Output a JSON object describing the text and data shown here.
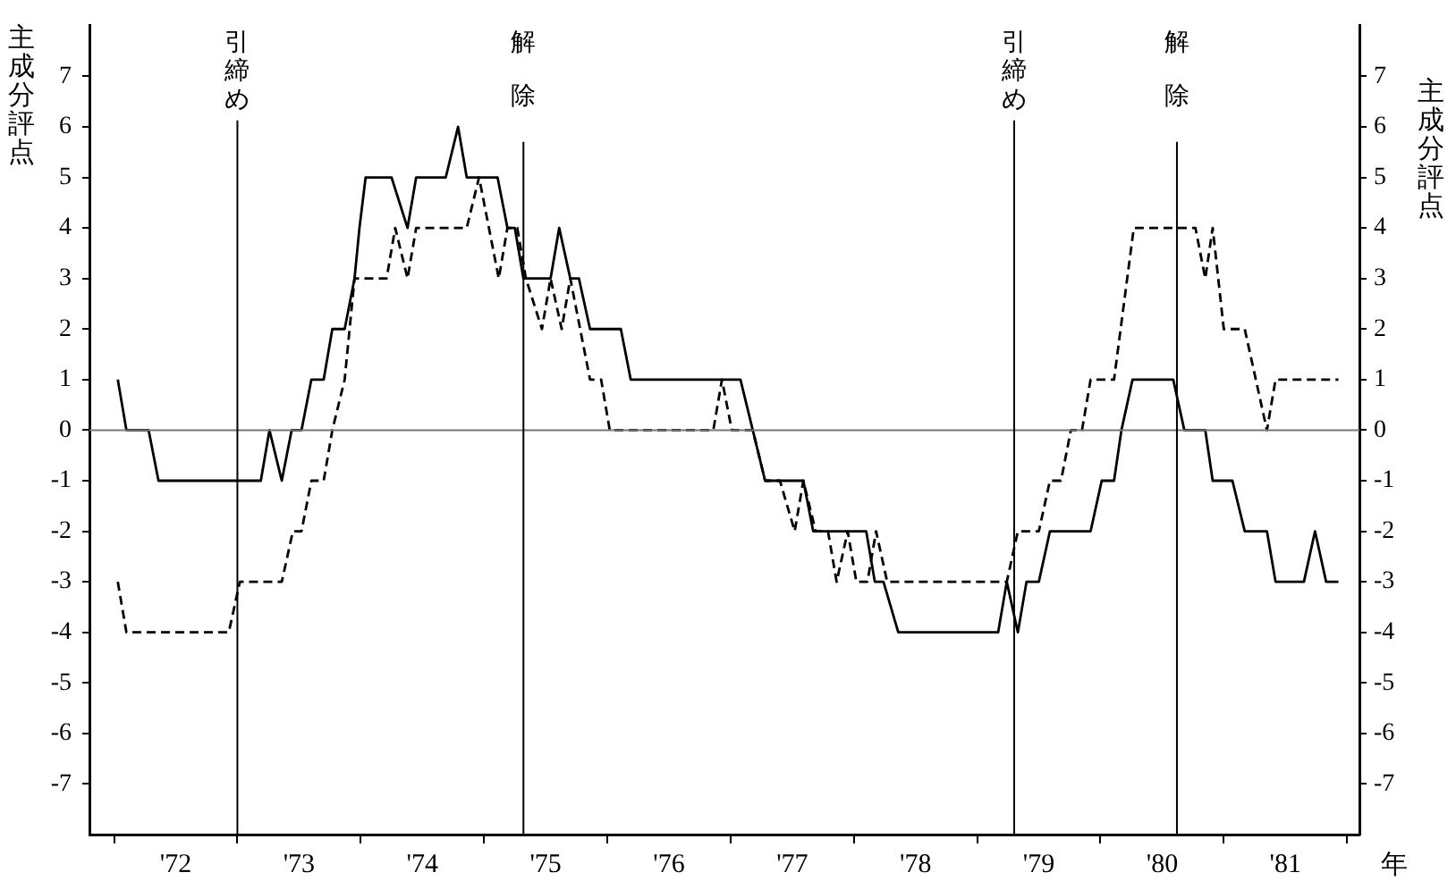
{
  "chart_data": {
    "type": "line",
    "ylabel": "主成分評点",
    "y2label": "主成分評点",
    "xlabel": "年",
    "xlim": [
      1971.3,
      1981.6
    ],
    "xticks": [
      {
        "value": 1971.5,
        "label": null
      },
      {
        "value": 1972,
        "label": "'72"
      },
      {
        "value": 1972.5,
        "label": null
      },
      {
        "value": 1973,
        "label": "'73"
      },
      {
        "value": 1973.5,
        "label": null
      },
      {
        "value": 1974,
        "label": "'74"
      },
      {
        "value": 1974.5,
        "label": null
      },
      {
        "value": 1975,
        "label": "'75"
      },
      {
        "value": 1975.5,
        "label": null
      },
      {
        "value": 1976,
        "label": "'76"
      },
      {
        "value": 1976.5,
        "label": null
      },
      {
        "value": 1977,
        "label": "'77"
      },
      {
        "value": 1977.5,
        "label": null
      },
      {
        "value": 1978,
        "label": "'78"
      },
      {
        "value": 1978.5,
        "label": null
      },
      {
        "value": 1979,
        "label": "'79"
      },
      {
        "value": 1979.5,
        "label": null
      },
      {
        "value": 1980,
        "label": "'80"
      },
      {
        "value": 1980.5,
        "label": null
      },
      {
        "value": 1981,
        "label": "'81"
      },
      {
        "value": 1981.5,
        "label": null
      }
    ],
    "ylim": [
      -8,
      8
    ],
    "yticks": [
      -7,
      -6,
      -5,
      -4,
      -3,
      -2,
      -1,
      0,
      1,
      2,
      3,
      4,
      5,
      6,
      7
    ],
    "y2lim": [
      -8,
      8
    ],
    "y2ticks": [
      -7,
      -6,
      -5,
      -4,
      -3,
      -2,
      -1,
      0,
      1,
      2,
      3,
      4,
      5,
      6,
      7
    ],
    "grid": false,
    "legend": false,
    "marker": "none",
    "series": [
      {
        "color": "#000000",
        "line_style": "solid",
        "x": [
          1971.53,
          1971.6,
          1971.78,
          1971.86,
          1972.69,
          1972.76,
          1972.86,
          1972.94,
          1973.02,
          1973.1,
          1973.2,
          1973.27,
          1973.37,
          1973.45,
          1973.49,
          1973.54,
          1973.75,
          1973.88,
          1973.95,
          1974.19,
          1974.29,
          1974.36,
          1974.61,
          1974.69,
          1974.75,
          1974.82,
          1975.04,
          1975.11,
          1975.2,
          1975.27,
          1975.36,
          1975.61,
          1975.69,
          1976.58,
          1976.78,
          1977.09,
          1977.17,
          1977.6,
          1977.67,
          1977.74,
          1977.86,
          1978.67,
          1978.74,
          1978.83,
          1978.9,
          1979.0,
          1979.09,
          1979.42,
          1979.51,
          1979.61,
          1979.67,
          1979.76,
          1980.09,
          1980.18,
          1980.35,
          1980.41,
          1980.57,
          1980.67,
          1980.85,
          1980.92,
          1981.15,
          1981.24,
          1981.33,
          1981.43
        ],
        "values": [
          1,
          0,
          0,
          -1,
          -1,
          0,
          -1,
          0,
          0,
          1,
          1,
          2,
          2,
          3,
          4,
          5,
          5,
          4,
          5,
          5,
          6,
          5,
          5,
          4,
          4,
          3,
          3,
          4,
          3,
          3,
          2,
          2,
          1,
          1,
          -1,
          -1,
          -2,
          -2,
          -3,
          -3,
          -4,
          -4,
          -3,
          -4,
          -3,
          -3,
          -2,
          -2,
          -1,
          -1,
          0,
          1,
          1,
          0,
          0,
          -1,
          -1,
          -2,
          -2,
          -3,
          -3,
          -2,
          -3,
          -3
        ]
      },
      {
        "color": "#000000",
        "line_style": "dashed",
        "x": [
          1971.53,
          1971.6,
          1972.43,
          1972.52,
          1972.86,
          1972.95,
          1973.02,
          1973.1,
          1973.2,
          1973.27,
          1973.37,
          1973.45,
          1973.71,
          1973.78,
          1973.88,
          1973.95,
          1974.36,
          1974.46,
          1974.62,
          1974.69,
          1974.77,
          1974.84,
          1974.97,
          1975.04,
          1975.13,
          1975.2,
          1975.36,
          1975.45,
          1975.52,
          1976.36,
          1976.43,
          1976.51,
          1976.68,
          1976.78,
          1976.9,
          1977.02,
          1977.09,
          1977.19,
          1977.29,
          1977.36,
          1977.45,
          1977.52,
          1977.61,
          1977.68,
          1977.77,
          1978.68,
          1978.74,
          1978.83,
          1979.0,
          1979.09,
          1979.18,
          1979.26,
          1979.35,
          1979.42,
          1979.61,
          1979.77,
          1980.27,
          1980.35,
          1980.41,
          1980.5,
          1980.67,
          1980.85,
          1980.92,
          1981.43
        ],
        "values": [
          -3,
          -4,
          -4,
          -3,
          -3,
          -2,
          -2,
          -1,
          -1,
          0,
          1,
          3,
          3,
          4,
          3,
          4,
          4,
          5,
          3,
          4,
          4,
          3,
          2,
          3,
          2,
          3,
          1,
          1,
          0,
          0,
          1,
          0,
          0,
          -1,
          -1,
          -2,
          -1,
          -2,
          -2,
          -3,
          -2,
          -3,
          -3,
          -2,
          -3,
          -3,
          -3,
          -2,
          -2,
          -1,
          -1,
          0,
          0,
          1,
          1,
          4,
          4,
          3,
          4,
          2,
          2,
          0,
          1,
          1
        ]
      }
    ],
    "ref_lines": [
      {
        "axis": "y",
        "value": 0,
        "color": "#777777"
      },
      {
        "axis": "x",
        "value": 1972.5,
        "label": "引締め",
        "color": "#000000"
      },
      {
        "axis": "x",
        "value": 1974.82,
        "label": "解除",
        "color": "#000000"
      },
      {
        "axis": "x",
        "value": 1978.8,
        "label": "引締め",
        "color": "#000000"
      },
      {
        "axis": "x",
        "value": 1980.12,
        "label": "解除",
        "color": "#000000"
      }
    ]
  }
}
